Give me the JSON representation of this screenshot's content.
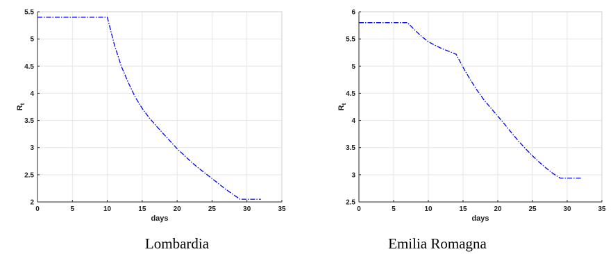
{
  "chart_data": [
    {
      "type": "line",
      "caption": "Lombardia",
      "xlabel": "days",
      "ylabel": "R",
      "ylabel_sub": "t",
      "xlim": [
        0,
        35
      ],
      "ylim": [
        2,
        5.5
      ],
      "xticks": [
        0,
        5,
        10,
        15,
        20,
        25,
        30,
        35
      ],
      "yticks": [
        2,
        2.5,
        3,
        3.5,
        4,
        4.5,
        5,
        5.5
      ],
      "grid": true,
      "series": [
        {
          "color": "#0000e6",
          "line_style": "dash-dot",
          "x": [
            0,
            5,
            10,
            11,
            12,
            13,
            14,
            15,
            16,
            17,
            18,
            19,
            20,
            21,
            22,
            23,
            24,
            25,
            26,
            27,
            28,
            29,
            30,
            31,
            32
          ],
          "y": [
            5.4,
            5.4,
            5.4,
            4.9,
            4.5,
            4.2,
            3.93,
            3.72,
            3.55,
            3.4,
            3.26,
            3.12,
            2.98,
            2.86,
            2.74,
            2.63,
            2.53,
            2.43,
            2.33,
            2.23,
            2.14,
            2.05,
            2.05,
            2.05,
            2.05
          ]
        }
      ]
    },
    {
      "type": "line",
      "caption": "Emilia Romagna",
      "xlabel": "days",
      "ylabel": "R",
      "ylabel_sub": "t",
      "xlim": [
        0,
        35
      ],
      "ylim": [
        2.5,
        6
      ],
      "xticks": [
        0,
        5,
        10,
        15,
        20,
        25,
        30,
        35
      ],
      "yticks": [
        2.5,
        3,
        3.5,
        4,
        4.5,
        5,
        5.5,
        6
      ],
      "grid": true,
      "series": [
        {
          "color": "#0000e6",
          "line_style": "dash-dot",
          "x": [
            0,
            5,
            7,
            8,
            9,
            10,
            11,
            12,
            13,
            14,
            15,
            16,
            17,
            18,
            19,
            20,
            21,
            22,
            23,
            24,
            25,
            26,
            27,
            28,
            29,
            30,
            31,
            32
          ],
          "y": [
            5.8,
            5.8,
            5.8,
            5.67,
            5.55,
            5.45,
            5.38,
            5.32,
            5.27,
            5.22,
            4.98,
            4.76,
            4.56,
            4.38,
            4.23,
            4.08,
            3.93,
            3.77,
            3.62,
            3.48,
            3.35,
            3.23,
            3.12,
            3.02,
            2.94,
            2.94,
            2.94,
            2.94
          ]
        }
      ]
    }
  ]
}
